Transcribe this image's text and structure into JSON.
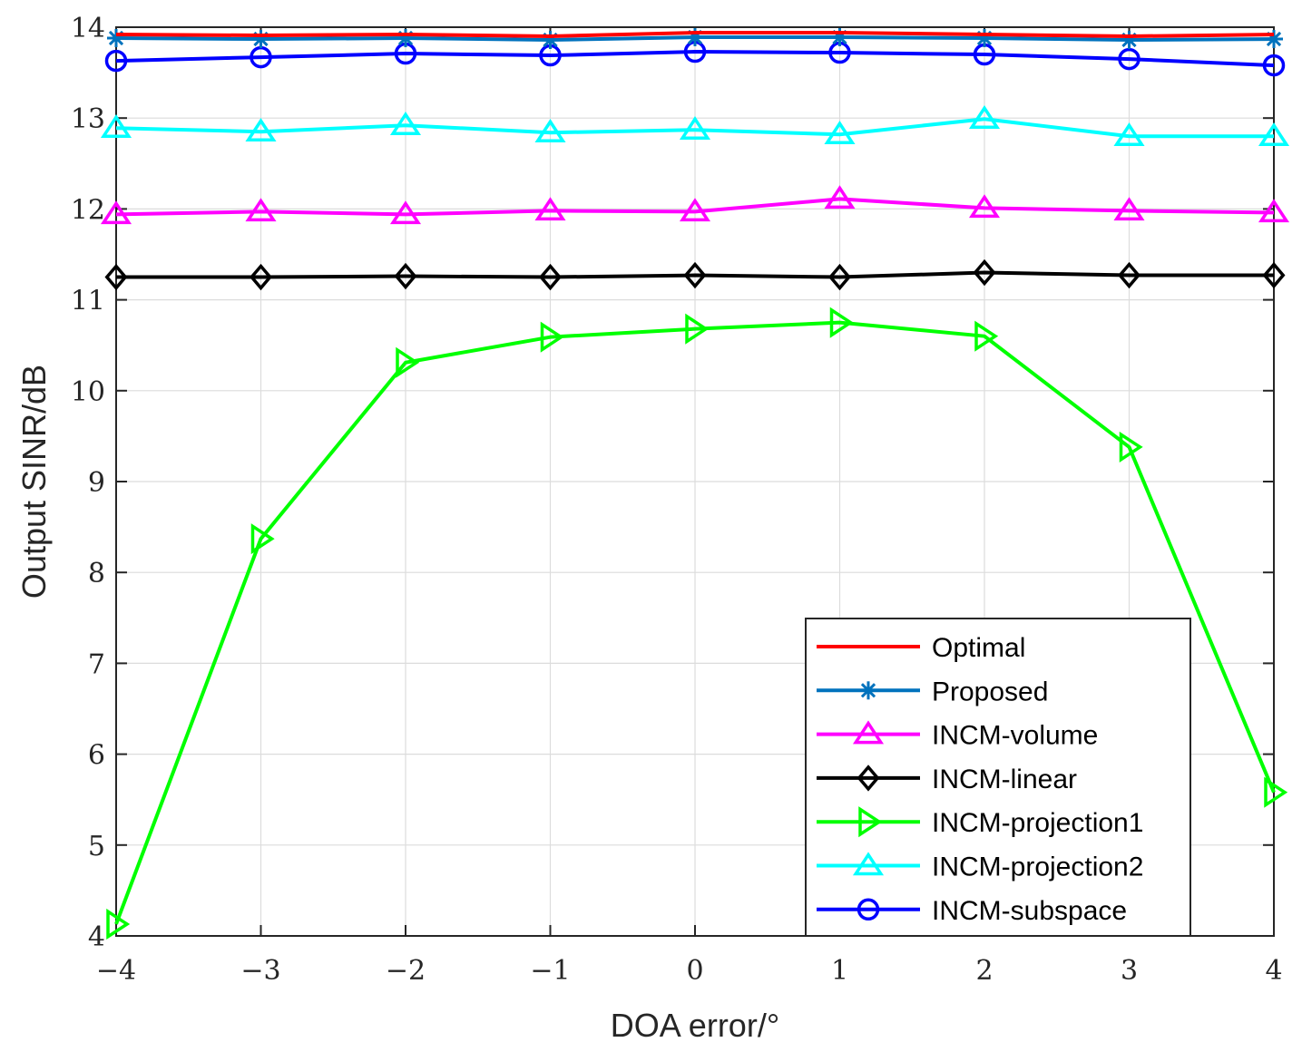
{
  "chart_data": {
    "type": "line",
    "title": "",
    "xlabel": "DOA error/°",
    "ylabel": "Output SINR/dB",
    "xlim": [
      -4,
      4
    ],
    "ylim": [
      4,
      14
    ],
    "grid": true,
    "legend_position": "bottom-right",
    "x": [
      -4,
      -3,
      -2,
      -1,
      0,
      1,
      2,
      3,
      4
    ],
    "x_tick_labels": [
      "−4",
      "−3",
      "−2",
      "−1",
      "0",
      "1",
      "2",
      "3",
      "4"
    ],
    "y_ticks": [
      4,
      5,
      6,
      7,
      8,
      9,
      10,
      11,
      12,
      13,
      14
    ],
    "y_tick_labels": [
      "4",
      "5",
      "6",
      "7",
      "8",
      "9",
      "10",
      "11",
      "12",
      "13",
      "14"
    ],
    "series": [
      {
        "name": "Optimal",
        "color": "#ff0000",
        "marker": "none",
        "values": [
          13.92,
          13.91,
          13.92,
          13.9,
          13.94,
          13.94,
          13.92,
          13.9,
          13.92
        ]
      },
      {
        "name": "Proposed",
        "color": "#0072bd",
        "marker": "asterisk",
        "values": [
          13.88,
          13.87,
          13.88,
          13.86,
          13.89,
          13.89,
          13.88,
          13.86,
          13.87
        ]
      },
      {
        "name": "INCM-volume",
        "color": "#ff00ff",
        "marker": "triangle-up",
        "values": [
          11.94,
          11.97,
          11.94,
          11.98,
          11.97,
          12.11,
          12.01,
          11.98,
          11.96
        ]
      },
      {
        "name": "INCM-linear",
        "color": "#000000",
        "marker": "diamond",
        "values": [
          11.25,
          11.25,
          11.26,
          11.25,
          11.27,
          11.25,
          11.3,
          11.27,
          11.27
        ]
      },
      {
        "name": "INCM-projection1",
        "color": "#00ff00",
        "marker": "triangle-right",
        "values": [
          4.13,
          8.37,
          10.31,
          10.59,
          10.68,
          10.75,
          10.6,
          9.38,
          5.58
        ]
      },
      {
        "name": "INCM-projection2",
        "color": "#00ffff",
        "marker": "triangle-up",
        "values": [
          12.89,
          12.85,
          12.92,
          12.84,
          12.87,
          12.82,
          12.99,
          12.8,
          12.8
        ]
      },
      {
        "name": "INCM-subspace",
        "color": "#0000ff",
        "marker": "circle",
        "values": [
          13.63,
          13.67,
          13.71,
          13.69,
          13.73,
          13.72,
          13.7,
          13.65,
          13.58
        ]
      }
    ]
  }
}
